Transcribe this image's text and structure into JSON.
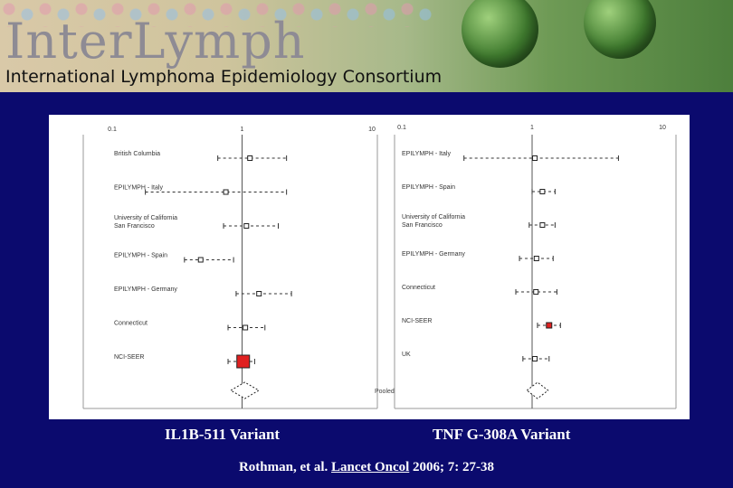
{
  "header": {
    "title": "InterLymph",
    "subtitle": "International Lymphoma Epidemiology Consortium"
  },
  "captions": {
    "left": "IL1B-511 Variant",
    "right": "TNF G-308A Variant"
  },
  "citation": {
    "authors": "Rothman, et al.",
    "journal": "Lancet Oncol",
    "details": "2006; 7: 27-38"
  },
  "colors": {
    "background": "#0b0a6e",
    "highlight": "#e02020"
  },
  "chart_data": [
    {
      "type": "forest",
      "title": "",
      "xscale": "log",
      "xlim": [
        0.1,
        10
      ],
      "xticks": [
        "0.1",
        "1",
        "10"
      ],
      "reference_line": 1,
      "studies": [
        {
          "label": "British Columbia",
          "or": 1.15,
          "lo": 0.65,
          "hi": 2.2,
          "highlight": false
        },
        {
          "label": "EPILYMPH - Italy",
          "or": 0.75,
          "lo": 0.18,
          "hi": 2.2,
          "highlight": false
        },
        {
          "label": "University of California\nSan Francisco",
          "or": 1.08,
          "lo": 0.72,
          "hi": 1.9,
          "highlight": false
        },
        {
          "label": "EPILYMPH - Spain",
          "or": 0.48,
          "lo": 0.36,
          "hi": 0.86,
          "highlight": false
        },
        {
          "label": "EPILYMPH - Germany",
          "or": 1.35,
          "lo": 0.9,
          "hi": 2.4,
          "highlight": false
        },
        {
          "label": "Connecticut",
          "or": 1.06,
          "lo": 0.78,
          "hi": 1.5,
          "highlight": false
        },
        {
          "label": "NCI-SEER",
          "or": 1.02,
          "lo": 0.78,
          "hi": 1.25,
          "highlight": true
        }
      ],
      "pooled": {
        "label": "Pooled",
        "or": 1.05,
        "lo": 0.9,
        "hi": 1.22
      }
    },
    {
      "type": "forest",
      "title": "",
      "xscale": "log",
      "xlim": [
        0.1,
        10
      ],
      "xticks": [
        "0.1",
        "1",
        "10"
      ],
      "reference_line": 1,
      "studies": [
        {
          "label": "EPILYMPH - Italy",
          "or": 1.05,
          "lo": 0.3,
          "hi": 4.6,
          "highlight": false
        },
        {
          "label": "EPILYMPH - Spain",
          "or": 1.2,
          "lo": 1.0,
          "hi": 1.5,
          "highlight": false
        },
        {
          "label": "University of California\nSan Francisco",
          "or": 1.2,
          "lo": 0.95,
          "hi": 1.5,
          "highlight": false
        },
        {
          "label": "EPILYMPH - Germany",
          "or": 1.08,
          "lo": 0.8,
          "hi": 1.45,
          "highlight": false
        },
        {
          "label": "Connecticut",
          "or": 1.07,
          "lo": 0.75,
          "hi": 1.55,
          "highlight": false
        },
        {
          "label": "NCI-SEER",
          "or": 1.35,
          "lo": 1.1,
          "hi": 1.65,
          "highlight": true
        },
        {
          "label": "UK",
          "or": 1.05,
          "lo": 0.85,
          "hi": 1.35,
          "highlight": false
        }
      ],
      "pooled": {
        "label": "",
        "or": 1.1,
        "lo": 1.0,
        "hi": 1.2
      }
    }
  ]
}
